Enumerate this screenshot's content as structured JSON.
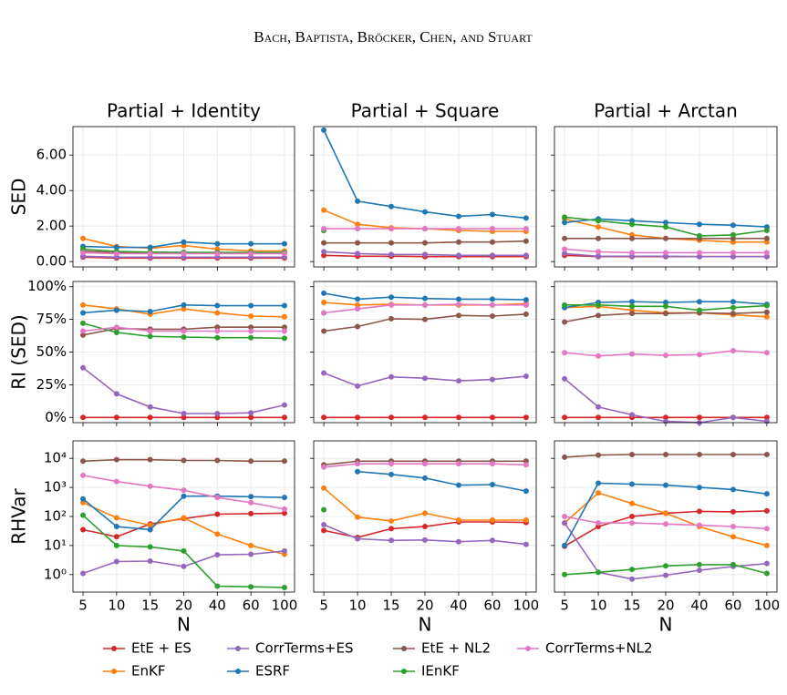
{
  "header": "Bach, Baptista, Bröcker, Chen, and Stuart",
  "chart_data": [
    {
      "type": "line",
      "title": "Partial + Identity",
      "ylabel": "SED",
      "ylim": [
        -0.3,
        7.6
      ],
      "yticks": [
        {
          "value": 0,
          "label": "0.00"
        },
        {
          "value": 2,
          "label": "2.00"
        },
        {
          "value": 4,
          "label": "4.00"
        },
        {
          "value": 6,
          "label": "6.00"
        }
      ],
      "grid": true,
      "series": [
        {
          "name": "EtE + ES",
          "color": "#d62728",
          "values": [
            0.25,
            0.2,
            0.2,
            0.2,
            0.2,
            0.2,
            0.2
          ]
        },
        {
          "name": "EnKF",
          "color": "#ff7f0e",
          "values": [
            1.3,
            0.85,
            0.75,
            0.9,
            0.7,
            0.6,
            0.6
          ]
        },
        {
          "name": "CorrTerms+ES",
          "color": "#9467bd",
          "values": [
            0.3,
            0.25,
            0.25,
            0.25,
            0.25,
            0.25,
            0.25
          ]
        },
        {
          "name": "ESRF",
          "color": "#1f77b4",
          "values": [
            0.85,
            0.8,
            0.8,
            1.1,
            1.0,
            1.0,
            1.0
          ]
        },
        {
          "name": "EtE + NL2",
          "color": "#8c564b",
          "values": [
            0.6,
            0.5,
            0.5,
            0.5,
            0.5,
            0.5,
            0.5
          ]
        },
        {
          "name": "IEnKF",
          "color": "#2ca02c",
          "values": [
            0.7,
            0.57,
            0.53,
            0.52,
            0.51,
            0.51,
            0.51
          ]
        },
        {
          "name": "CorrTerms+NL2",
          "color": "#e377c2",
          "values": [
            0.5,
            0.45,
            0.45,
            0.45,
            0.45,
            0.45,
            0.45
          ]
        }
      ]
    },
    {
      "type": "line",
      "title": "Partial + Square",
      "ylim": [
        -0.3,
        7.6
      ],
      "yticks": [
        0,
        2,
        4,
        6
      ],
      "grid": true,
      "series": [
        {
          "color": "#d62728",
          "values": [
            0.35,
            0.3,
            0.3,
            0.28,
            0.28,
            0.28,
            0.28
          ]
        },
        {
          "color": "#ff7f0e",
          "values": [
            2.9,
            2.1,
            1.9,
            1.85,
            1.75,
            1.7,
            1.7
          ]
        },
        {
          "color": "#9467bd",
          "values": [
            0.55,
            0.45,
            0.4,
            0.4,
            0.35,
            0.35,
            0.35
          ]
        },
        {
          "color": "#1f77b4",
          "values": [
            7.4,
            3.4,
            3.1,
            2.8,
            2.55,
            2.65,
            2.45
          ]
        },
        {
          "color": "#8c564b",
          "values": [
            1.05,
            1.05,
            1.05,
            1.05,
            1.1,
            1.1,
            1.15
          ]
        },
        {
          "color": "#2ca02c",
          "values": [
            1.75,
            null,
            null,
            null,
            null,
            null,
            null
          ]
        },
        {
          "color": "#e377c2",
          "values": [
            1.85,
            1.85,
            1.85,
            1.85,
            1.85,
            1.85,
            1.85
          ]
        }
      ]
    },
    {
      "type": "line",
      "title": "Partial + Arctan",
      "ylim": [
        -0.3,
        7.6
      ],
      "yticks": [
        0,
        2,
        4,
        6
      ],
      "grid": true,
      "series": [
        {
          "color": "#d62728",
          "values": [
            0.35,
            0.28,
            0.28,
            0.28,
            0.28,
            0.28,
            0.28
          ]
        },
        {
          "color": "#ff7f0e",
          "values": [
            2.4,
            1.95,
            1.5,
            1.3,
            1.2,
            1.1,
            1.1
          ]
        },
        {
          "color": "#9467bd",
          "values": [
            0.45,
            0.3,
            0.3,
            0.3,
            0.28,
            0.28,
            0.28
          ]
        },
        {
          "color": "#1f77b4",
          "values": [
            2.2,
            2.4,
            2.3,
            2.2,
            2.1,
            2.05,
            1.95
          ]
        },
        {
          "color": "#8c564b",
          "values": [
            1.3,
            1.3,
            1.3,
            1.3,
            1.3,
            1.3,
            1.3
          ]
        },
        {
          "color": "#2ca02c",
          "values": [
            2.5,
            2.3,
            2.1,
            1.95,
            1.45,
            1.5,
            1.75
          ]
        },
        {
          "color": "#e377c2",
          "values": [
            0.7,
            0.55,
            0.5,
            0.5,
            0.5,
            0.5,
            0.5
          ]
        }
      ]
    },
    {
      "type": "line",
      "ylabel": "RI (SED)",
      "ylim": [
        -4,
        104
      ],
      "yticks": [
        {
          "value": 0,
          "label": "0%"
        },
        {
          "value": 25,
          "label": "25%"
        },
        {
          "value": 50,
          "label": "50%"
        },
        {
          "value": 75,
          "label": "75%"
        },
        {
          "value": 100,
          "label": "100%"
        }
      ],
      "grid": true,
      "series": [
        {
          "color": "#d62728",
          "values": [
            0,
            0,
            0,
            0,
            0,
            0,
            0
          ]
        },
        {
          "color": "#ff7f0e",
          "values": [
            86,
            83,
            79,
            83,
            80,
            77.5,
            77
          ]
        },
        {
          "color": "#9467bd",
          "values": [
            38,
            18,
            8,
            3,
            3,
            3.5,
            9.5
          ]
        },
        {
          "color": "#1f77b4",
          "values": [
            80,
            82,
            81,
            86,
            85.5,
            85.5,
            85.5
          ]
        },
        {
          "color": "#8c564b",
          "values": [
            63,
            68,
            67.5,
            67.5,
            69,
            69,
            69
          ]
        },
        {
          "color": "#2ca02c",
          "values": [
            72,
            65,
            62,
            61.5,
            61,
            61,
            60.5
          ]
        },
        {
          "color": "#e377c2",
          "values": [
            66,
            69,
            66,
            66,
            66,
            66,
            66
          ]
        }
      ]
    },
    {
      "type": "line",
      "ylim": [
        -4,
        104
      ],
      "yticks": [
        0,
        25,
        50,
        75,
        100
      ],
      "grid": true,
      "series": [
        {
          "color": "#d62728",
          "values": [
            0,
            0,
            0,
            0,
            0,
            0,
            0
          ]
        },
        {
          "color": "#ff7f0e",
          "values": [
            88,
            86,
            86.5,
            86,
            86,
            86,
            87
          ]
        },
        {
          "color": "#9467bd",
          "values": [
            34,
            24,
            31,
            30,
            28,
            29,
            31.5
          ]
        },
        {
          "color": "#1f77b4",
          "values": [
            95,
            90.5,
            92,
            91,
            90.5,
            90.5,
            90
          ]
        },
        {
          "color": "#8c564b",
          "values": [
            66,
            69.5,
            75.5,
            75,
            78,
            77.5,
            79
          ]
        },
        {
          "color": "#2ca02c",
          "values": [
            80,
            null,
            null,
            null,
            null,
            null,
            null
          ]
        },
        {
          "color": "#e377c2",
          "values": [
            80,
            83,
            86,
            86,
            86.5,
            86,
            86
          ]
        }
      ]
    },
    {
      "type": "line",
      "ylim": [
        -4,
        104
      ],
      "yticks": [
        0,
        25,
        50,
        75,
        100
      ],
      "grid": true,
      "series": [
        {
          "color": "#d62728",
          "values": [
            0,
            0,
            0,
            0,
            0,
            0,
            0
          ]
        },
        {
          "color": "#ff7f0e",
          "values": [
            84,
            85,
            82,
            80,
            80,
            78.5,
            77
          ]
        },
        {
          "color": "#9467bd",
          "values": [
            29.5,
            8,
            2,
            -3,
            -4,
            0,
            -3
          ]
        },
        {
          "color": "#1f77b4",
          "values": [
            84,
            88,
            88.5,
            88,
            88.5,
            88.5,
            86.5
          ]
        },
        {
          "color": "#8c564b",
          "values": [
            73,
            78,
            79.5,
            79.5,
            80,
            79.5,
            80.5
          ]
        },
        {
          "color": "#2ca02c",
          "values": [
            86,
            86,
            85,
            85,
            82,
            84,
            85.5
          ]
        },
        {
          "color": "#e377c2",
          "values": [
            49.5,
            47,
            48.5,
            47.5,
            48,
            51,
            49.5
          ]
        }
      ]
    },
    {
      "type": "line",
      "ylabel": "RHVar",
      "xlabel": "N",
      "categories": [
        "5",
        "10",
        "15",
        "20",
        "40",
        "60",
        "100"
      ],
      "log_scale": true,
      "ylim": [
        0.25,
        40000
      ],
      "yticks": [
        {
          "value": 1,
          "label": "10⁰"
        },
        {
          "value": 10,
          "label": "10¹"
        },
        {
          "value": 100,
          "label": "10²"
        },
        {
          "value": 1000,
          "label": "10³"
        },
        {
          "value": 10000,
          "label": "10⁴"
        }
      ],
      "grid": true,
      "series": [
        {
          "color": "#d62728",
          "values": [
            35,
            20,
            55,
            85,
            120,
            125,
            130
          ]
        },
        {
          "color": "#ff7f0e",
          "values": [
            300,
            90,
            50,
            90,
            25,
            10,
            5
          ]
        },
        {
          "color": "#9467bd",
          "values": [
            1.1,
            2.8,
            2.9,
            1.9,
            4.8,
            5,
            6.5
          ]
        },
        {
          "color": "#1f77b4",
          "values": [
            400,
            45,
            35,
            500,
            500,
            480,
            450
          ]
        },
        {
          "color": "#8c564b",
          "values": [
            8000,
            9000,
            9000,
            8500,
            8500,
            8000,
            8000
          ]
        },
        {
          "color": "#2ca02c",
          "values": [
            110,
            10,
            9,
            6.5,
            0.4,
            0.38,
            0.36
          ]
        },
        {
          "color": "#e377c2",
          "values": [
            2600,
            1600,
            1100,
            800,
            450,
            300,
            180
          ]
        }
      ]
    },
    {
      "type": "line",
      "xlabel": "N",
      "categories": [
        "5",
        "10",
        "15",
        "20",
        "40",
        "60",
        "100"
      ],
      "log_scale": true,
      "ylim": [
        0.25,
        40000
      ],
      "yticks": [
        1,
        10,
        100,
        1000,
        10000
      ],
      "grid": true,
      "series": [
        {
          "color": "#d62728",
          "values": [
            33,
            19,
            38,
            45,
            65,
            65,
            62
          ]
        },
        {
          "color": "#ff7f0e",
          "values": [
            950,
            95,
            70,
            130,
            75,
            75,
            75
          ]
        },
        {
          "color": "#9467bd",
          "values": [
            52,
            17,
            15,
            15.5,
            13.5,
            15,
            11
          ]
        },
        {
          "color": "#1f77b4",
          "values": [
            null,
            3500,
            2800,
            2100,
            1200,
            1250,
            750
          ]
        },
        {
          "color": "#8c564b",
          "values": [
            6000,
            8000,
            8000,
            8000,
            8000,
            8000,
            8000
          ]
        },
        {
          "color": "#2ca02c",
          "values": [
            170,
            null,
            null,
            null,
            null,
            null,
            null
          ]
        },
        {
          "color": "#e377c2",
          "values": [
            5000,
            6500,
            6500,
            6500,
            6500,
            6500,
            6000
          ]
        }
      ]
    },
    {
      "type": "line",
      "xlabel": "N",
      "categories": [
        "5",
        "10",
        "15",
        "20",
        "40",
        "60",
        "100"
      ],
      "log_scale": true,
      "ylim": [
        0.25,
        40000
      ],
      "yticks": [
        1,
        10,
        100,
        1000,
        10000
      ],
      "grid": true,
      "series": [
        {
          "color": "#d62728",
          "values": [
            9.5,
            45,
            100,
            130,
            150,
            145,
            155
          ]
        },
        {
          "color": "#ff7f0e",
          "values": [
            60,
            650,
            280,
            130,
            45,
            20,
            10
          ]
        },
        {
          "color": "#9467bd",
          "values": [
            60,
            1.2,
            0.7,
            0.95,
            1.4,
            1.9,
            2.4
          ]
        },
        {
          "color": "#1f77b4",
          "values": [
            10,
            1400,
            1300,
            1200,
            1000,
            850,
            600
          ]
        },
        {
          "color": "#8c564b",
          "values": [
            11000,
            13000,
            13500,
            13500,
            13500,
            13500,
            13500
          ]
        },
        {
          "color": "#2ca02c",
          "values": [
            1,
            1.2,
            1.5,
            2,
            2.2,
            2.2,
            1.1
          ]
        },
        {
          "color": "#e377c2",
          "values": [
            100,
            60,
            60,
            55,
            50,
            45,
            38
          ]
        }
      ]
    }
  ]
}
